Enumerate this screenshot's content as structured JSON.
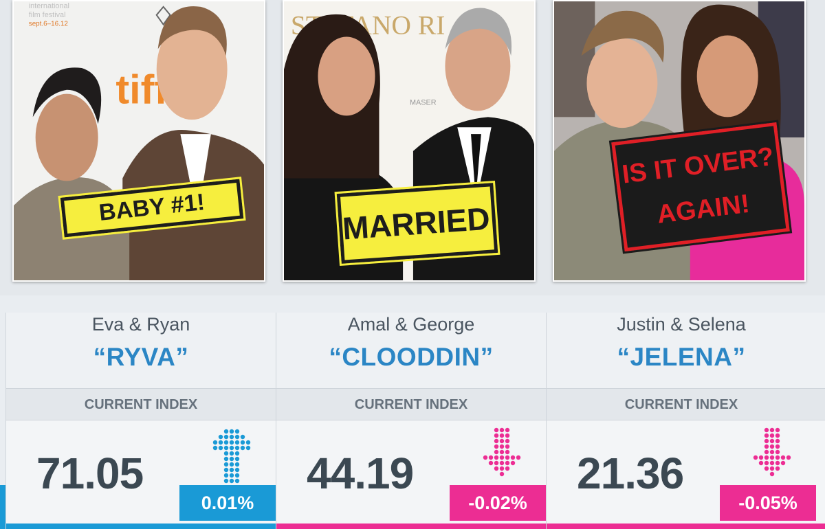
{
  "photos": [
    {
      "tag": "BABY #1!",
      "festival": "international\nfilm festival\nsept.6–16.12",
      "brand": "tiff"
    },
    {
      "tag": "MARRIED!",
      "backdrop": "STEFANO RICCI",
      "brand_small": "MASER"
    },
    {
      "tag": "IS IT OVER?\nAGAIN!"
    }
  ],
  "cards": [
    {
      "pair": "Eva & Ryan",
      "nick": "“RYVA”",
      "index_label": "CURRENT INDEX",
      "value": "71.05",
      "change": "0.01%",
      "direction": "up",
      "color": "#1a9ad6"
    },
    {
      "pair": "Amal & George",
      "nick": "“CLOODDIN”",
      "index_label": "CURRENT INDEX",
      "value": "44.19",
      "change": "-0.02%",
      "direction": "down",
      "color": "#ec2d93"
    },
    {
      "pair": "Justin & Selena",
      "nick": "“JELENA”",
      "index_label": "CURRENT INDEX",
      "value": "21.36",
      "change": "-0.05%",
      "direction": "down",
      "color": "#ec2d93"
    }
  ],
  "colors": {
    "up": "#1a9ad6",
    "down": "#ec2d93",
    "nick": "#2b86c5"
  },
  "icons": {
    "up": "arrow-up-icon",
    "down": "arrow-down-icon"
  }
}
